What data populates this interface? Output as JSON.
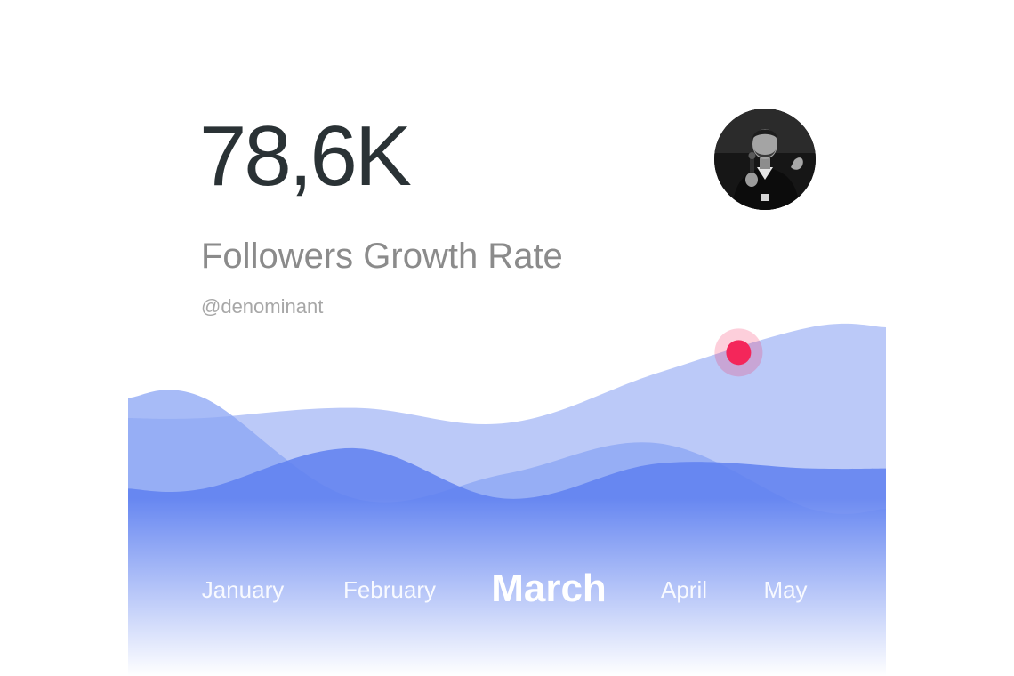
{
  "header": {
    "value": "78,6K",
    "title": "Followers Growth Rate",
    "handle": "@denominant"
  },
  "avatar": {
    "icon": "person-photo"
  },
  "colors": {
    "text_dark": "#2a3235",
    "text_gray": "#8b8b8b",
    "wave_light": "#b7c6f8",
    "wave_mid": "#8aa4f4",
    "wave_strong": "#5f80f0",
    "marker": "#f4265a"
  },
  "chart_data": {
    "type": "area",
    "categories": [
      "January",
      "February",
      "March",
      "April",
      "May"
    ],
    "selected": "March",
    "series": [
      {
        "values": [
          3.0,
          3.2,
          2.9,
          3.9,
          4.8
        ]
      },
      {
        "values": [
          3.4,
          1.4,
          1.9,
          2.5,
          1.2
        ]
      },
      {
        "values": [
          1.6,
          2.4,
          1.4,
          2.1,
          2.0
        ]
      }
    ],
    "marker": {
      "category": "April",
      "value": 4.3
    },
    "ylim": [
      0,
      6
    ],
    "grid": false
  }
}
